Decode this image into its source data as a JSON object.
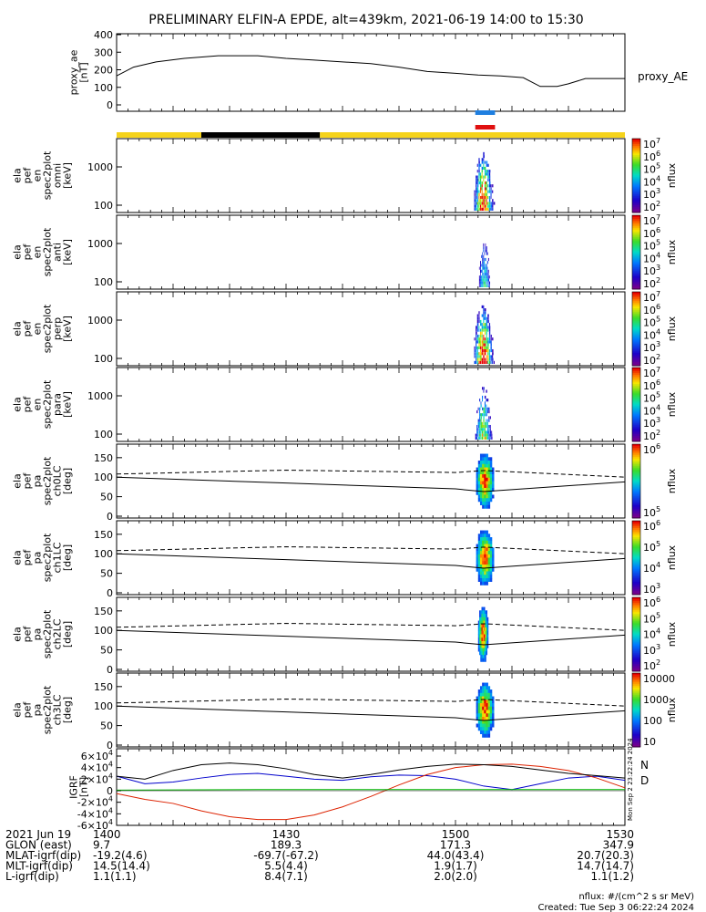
{
  "title": "PRELIMINARY ELFIN-A EPDE, alt=439km, 2021-06-19 14:00 to 15:30",
  "colors": {
    "status_yellow": "#f5d31b",
    "status_black": "#000000",
    "bar_blue": "#1f7fe0",
    "bar_red": "#e01010",
    "igrf_n": "#0000cc",
    "igrf_d": "#dd2200",
    "igrf_z": "#00bb00"
  },
  "footer": {
    "rows": [
      {
        "label": "2021 Jun 19",
        "values": [
          "1400",
          "1430",
          "1500",
          "1530"
        ]
      },
      {
        "label": "GLON (east)",
        "values": [
          "9.7",
          "189.3",
          "171.3",
          "347.9"
        ]
      },
      {
        "label": "MLAT-igrf(dip)",
        "values": [
          "-19.2(4.6)",
          "-69.7(-67.2)",
          "44.0(43.4)",
          "20.7(20.3)"
        ]
      },
      {
        "label": "MLT-igrf(dip)",
        "values": [
          "14.5(14.4)",
          "5.5(4.4)",
          "1.9(1.7)",
          "14.7(14.7)"
        ]
      },
      {
        "label": "L-igrf(dip)",
        "values": [
          "1.1(1.1)",
          "8.4(7.1)",
          "2.0(2.0)",
          "1.1(1.2)"
        ]
      }
    ],
    "units_note": "nflux: #/(cm^2 s sr MeV)",
    "created": "Created: Tue Sep  3 06:22:24 2024",
    "side_stamp": "Mon Sep  2 23:22:24 2024"
  },
  "chart_data": [
    {
      "type": "line",
      "ylabel": [
        "proxy_ae",
        "[nT]"
      ],
      "ylim": [
        0,
        400
      ],
      "yticks": [
        "0",
        "100",
        "200",
        "300",
        "400"
      ],
      "legend": "proxy_AE",
      "x": [
        1400,
        1403,
        1407,
        1412,
        1418,
        1425,
        1430,
        1435,
        1440,
        1445,
        1450,
        1455,
        1500,
        1504,
        1508,
        1512,
        1515,
        1518,
        1520,
        1523,
        1525,
        1530
      ],
      "values": [
        165,
        215,
        245,
        265,
        280,
        280,
        265,
        255,
        245,
        235,
        215,
        190,
        180,
        170,
        165,
        155,
        105,
        105,
        120,
        150,
        150,
        150
      ]
    },
    {
      "type": "status_bar",
      "segments": [
        {
          "from": 1400,
          "to": 1415,
          "state": "yellow"
        },
        {
          "from": 1415,
          "to": 1436,
          "state": "black"
        },
        {
          "from": 1436,
          "to": 1530,
          "state": "yellow"
        }
      ],
      "blue_interval": [
        1503.5,
        1507
      ],
      "red_interval": [
        1503.5,
        1507
      ]
    },
    {
      "type": "heatmap",
      "ylabel": [
        "ela",
        "pef",
        "en",
        "spec2plot",
        "omni",
        "[keV]"
      ],
      "yticks": [
        "100",
        "1000"
      ],
      "zlabel": "nflux",
      "zticks": [
        "10",
        "10",
        "10",
        "10",
        "10",
        "10"
      ],
      "zsup": [
        "2",
        "3",
        "4",
        "5",
        "6",
        "7"
      ],
      "time_range": [
        1503.3,
        1507.0
      ],
      "intensity": "high"
    },
    {
      "type": "heatmap",
      "ylabel": [
        "ela",
        "pef",
        "en",
        "spec2plot",
        "anti",
        "[keV]"
      ],
      "yticks": [
        "100",
        "1000"
      ],
      "zlabel": "nflux",
      "zticks": [
        "10",
        "10",
        "10",
        "10",
        "10",
        "10"
      ],
      "zsup": [
        "2",
        "3",
        "4",
        "5",
        "6",
        "7"
      ],
      "time_range": [
        1504.0,
        1506.5
      ],
      "intensity": "low"
    },
    {
      "type": "heatmap",
      "ylabel": [
        "ela",
        "pef",
        "en",
        "spec2plot",
        "perp",
        "[keV]"
      ],
      "yticks": [
        "100",
        "1000"
      ],
      "zlabel": "nflux",
      "zticks": [
        "10",
        "10",
        "10",
        "10",
        "10",
        "10"
      ],
      "zsup": [
        "2",
        "3",
        "4",
        "5",
        "6",
        "7"
      ],
      "time_range": [
        1503.3,
        1507.0
      ],
      "intensity": "high"
    },
    {
      "type": "heatmap",
      "ylabel": [
        "ela",
        "pef",
        "en",
        "spec2plot",
        "para",
        "[keV]"
      ],
      "yticks": [
        "100",
        "1000"
      ],
      "zlabel": "nflux",
      "zticks": [
        "10",
        "10",
        "10",
        "10",
        "10",
        "10"
      ],
      "zsup": [
        "2",
        "3",
        "4",
        "5",
        "6",
        "7"
      ],
      "time_range": [
        1503.5,
        1506.8
      ],
      "intensity": "medium"
    },
    {
      "type": "heatmap",
      "ylabel": [
        "ela",
        "pef",
        "pa",
        "spec2plot",
        "ch0LC",
        "[deg]"
      ],
      "ylim": [
        0,
        180
      ],
      "yticks": [
        "0",
        "50",
        "100",
        "150"
      ],
      "zlabel": "nflux",
      "zticks": [
        "10",
        "10"
      ],
      "zsup": [
        "5",
        "6"
      ],
      "time_range": [
        1503.3,
        1506.8
      ],
      "lc_solid": [
        [
          1400,
          100
        ],
        [
          1430,
          85
        ],
        [
          1500,
          70
        ],
        [
          1505,
          63
        ],
        [
          1530,
          88
        ]
      ],
      "lc_dashed": [
        [
          1400,
          108
        ],
        [
          1430,
          118
        ],
        [
          1500,
          112
        ],
        [
          1505,
          117
        ],
        [
          1530,
          100
        ]
      ]
    },
    {
      "type": "heatmap",
      "ylabel": [
        "ela",
        "pef",
        "pa",
        "spec2plot",
        "ch1LC",
        "[deg]"
      ],
      "ylim": [
        0,
        180
      ],
      "yticks": [
        "0",
        "50",
        "100",
        "150"
      ],
      "zlabel": "nflux",
      "zticks": [
        "10",
        "10",
        "10",
        "10"
      ],
      "zsup": [
        "3",
        "4",
        "5",
        "6"
      ],
      "time_range": [
        1503.3,
        1506.8
      ],
      "lc_solid": [
        [
          1400,
          100
        ],
        [
          1430,
          85
        ],
        [
          1500,
          70
        ],
        [
          1505,
          63
        ],
        [
          1530,
          88
        ]
      ],
      "lc_dashed": [
        [
          1400,
          108
        ],
        [
          1430,
          118
        ],
        [
          1500,
          112
        ],
        [
          1505,
          117
        ],
        [
          1530,
          100
        ]
      ]
    },
    {
      "type": "heatmap",
      "ylabel": [
        "ela",
        "pef",
        "pa",
        "spec2plot",
        "ch2LC",
        "[deg]"
      ],
      "ylim": [
        0,
        180
      ],
      "yticks": [
        "0",
        "50",
        "100",
        "150"
      ],
      "zlabel": "nflux",
      "zticks": [
        "10",
        "10",
        "10",
        "10",
        "10"
      ],
      "zsup": [
        "2",
        "3",
        "4",
        "5",
        "6"
      ],
      "time_range": [
        1503.8,
        1505.8
      ],
      "lc_solid": [
        [
          1400,
          100
        ],
        [
          1430,
          85
        ],
        [
          1500,
          70
        ],
        [
          1505,
          63
        ],
        [
          1530,
          88
        ]
      ],
      "lc_dashed": [
        [
          1400,
          108
        ],
        [
          1430,
          118
        ],
        [
          1500,
          112
        ],
        [
          1505,
          117
        ],
        [
          1530,
          100
        ]
      ]
    },
    {
      "type": "heatmap",
      "ylabel": [
        "ela",
        "pef",
        "pa",
        "spec2plot",
        "ch3LC",
        "[deg]"
      ],
      "ylim": [
        0,
        180
      ],
      "yticks": [
        "0",
        "50",
        "100",
        "150"
      ],
      "zlabel": "nflux",
      "zticks": [
        "10",
        "100",
        "1000",
        "10000"
      ],
      "zsup": [],
      "time_range": [
        1503.3,
        1506.8
      ],
      "lc_solid": [
        [
          1400,
          100
        ],
        [
          1430,
          85
        ],
        [
          1500,
          70
        ],
        [
          1505,
          63
        ],
        [
          1530,
          88
        ]
      ],
      "lc_dashed": [
        [
          1400,
          108
        ],
        [
          1430,
          118
        ],
        [
          1500,
          112
        ],
        [
          1505,
          117
        ],
        [
          1530,
          100
        ]
      ]
    },
    {
      "type": "line",
      "ylabel": [
        "IGRF",
        "[nT]"
      ],
      "ylim": [
        -60000,
        60000
      ],
      "yticks": [
        "-6×10",
        "-4×10",
        "-2×10",
        "0",
        "2×10",
        "4×10",
        "6×10"
      ],
      "ytick_sup": "4",
      "legend": [
        "N",
        "D"
      ],
      "x": [
        1400,
        1405,
        1410,
        1415,
        1420,
        1425,
        1430,
        1435,
        1440,
        1445,
        1450,
        1455,
        1500,
        1505,
        1510,
        1515,
        1520,
        1525,
        1530
      ],
      "series": [
        {
          "name": "N",
          "values": [
            25000,
            12000,
            15000,
            22000,
            28000,
            30000,
            25000,
            20000,
            18000,
            24000,
            27000,
            26000,
            20000,
            8000,
            2000,
            12000,
            22000,
            25000,
            18000
          ]
        },
        {
          "name": "D",
          "values": [
            -5000,
            -15000,
            -22000,
            -35000,
            -45000,
            -50000,
            -50000,
            -42000,
            -28000,
            -10000,
            10000,
            28000,
            40000,
            45000,
            46000,
            42000,
            35000,
            22000,
            5000
          ]
        },
        {
          "values": [
            25000,
            20000,
            35000,
            45000,
            48000,
            45000,
            38000,
            28000,
            22000,
            28000,
            36000,
            42000,
            46000,
            45000,
            42000,
            36000,
            30000,
            26000,
            22000
          ]
        },
        {
          "values": [
            1000,
            1200,
            1400,
            1600,
            1800,
            2000,
            2000,
            2000,
            2000,
            2000,
            2000,
            2000,
            2000,
            2000,
            2000,
            2000,
            2000,
            2000,
            2000
          ]
        }
      ]
    }
  ]
}
